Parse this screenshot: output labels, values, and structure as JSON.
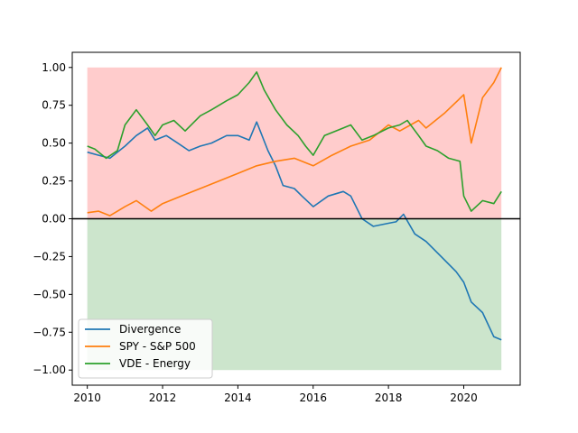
{
  "chart_data": {
    "type": "line",
    "title": "",
    "xlabel": "",
    "ylabel": "",
    "xlim": [
      2009.6,
      2021.5
    ],
    "ylim": [
      -1.1,
      1.1
    ],
    "x_ticks": [
      2010,
      2012,
      2014,
      2016,
      2018,
      2020
    ],
    "x_tick_labels": [
      "2010",
      "2012",
      "2014",
      "2016",
      "2018",
      "2020"
    ],
    "y_ticks": [
      1.0,
      0.75,
      0.5,
      0.25,
      0.0,
      -0.25,
      -0.5,
      -0.75,
      -1.0
    ],
    "y_tick_labels": [
      "1.00",
      "0.75",
      "0.50",
      "0.25",
      "0.00",
      "−0.25",
      "−0.50",
      "−0.75",
      "−1.00"
    ],
    "grid": false,
    "legend": {
      "position": "lower-left"
    },
    "bands": [
      {
        "y_from": 0,
        "y_to": 1,
        "x_from": 2010,
        "x_to": 2021,
        "color": "#ffcccc"
      },
      {
        "y_from": -1,
        "y_to": 0,
        "x_from": 2010,
        "x_to": 2021,
        "color": "#cce5cc"
      }
    ],
    "reference_line": {
      "y": 0,
      "color": "#000000"
    },
    "series": [
      {
        "name": "Divergence",
        "color": "#1f77b4",
        "x": [
          2010.0,
          2010.3,
          2010.6,
          2011.0,
          2011.3,
          2011.6,
          2011.8,
          2012.1,
          2012.4,
          2012.7,
          2013.0,
          2013.3,
          2013.7,
          2014.0,
          2014.3,
          2014.5,
          2014.8,
          2015.0,
          2015.2,
          2015.5,
          2015.7,
          2016.0,
          2016.4,
          2016.8,
          2017.0,
          2017.3,
          2017.6,
          2018.0,
          2018.2,
          2018.4,
          2018.7,
          2019.0,
          2019.4,
          2019.8,
          2020.0,
          2020.2,
          2020.5,
          2020.8,
          2021.0
        ],
        "y": [
          0.44,
          0.42,
          0.4,
          0.48,
          0.55,
          0.6,
          0.52,
          0.55,
          0.5,
          0.45,
          0.48,
          0.5,
          0.55,
          0.55,
          0.52,
          0.64,
          0.45,
          0.35,
          0.22,
          0.2,
          0.15,
          0.08,
          0.15,
          0.18,
          0.15,
          0.0,
          -0.05,
          -0.03,
          -0.02,
          0.03,
          -0.1,
          -0.15,
          -0.25,
          -0.35,
          -0.42,
          -0.55,
          -0.62,
          -0.78,
          -0.8
        ]
      },
      {
        "name": "SPY - S&P 500",
        "color": "#ff7f0e",
        "x": [
          2010.0,
          2010.3,
          2010.6,
          2011.0,
          2011.3,
          2011.7,
          2012.0,
          2012.5,
          2013.0,
          2013.5,
          2014.0,
          2014.5,
          2015.0,
          2015.5,
          2016.0,
          2016.5,
          2017.0,
          2017.5,
          2018.0,
          2018.3,
          2018.8,
          2019.0,
          2019.5,
          2020.0,
          2020.2,
          2020.3,
          2020.5,
          2020.8,
          2021.0
        ],
        "y": [
          0.04,
          0.05,
          0.02,
          0.08,
          0.12,
          0.05,
          0.1,
          0.15,
          0.2,
          0.25,
          0.3,
          0.35,
          0.38,
          0.4,
          0.35,
          0.42,
          0.48,
          0.52,
          0.62,
          0.58,
          0.65,
          0.6,
          0.7,
          0.82,
          0.5,
          0.6,
          0.8,
          0.9,
          1.0
        ]
      },
      {
        "name": "VDE - Energy",
        "color": "#2ca02c",
        "x": [
          2010.0,
          2010.2,
          2010.5,
          2010.8,
          2011.0,
          2011.3,
          2011.6,
          2011.8,
          2012.0,
          2012.3,
          2012.6,
          2013.0,
          2013.3,
          2013.7,
          2014.0,
          2014.3,
          2014.5,
          2014.7,
          2015.0,
          2015.3,
          2015.6,
          2015.8,
          2016.0,
          2016.3,
          2016.6,
          2017.0,
          2017.3,
          2017.6,
          2018.0,
          2018.3,
          2018.5,
          2018.8,
          2019.0,
          2019.3,
          2019.6,
          2019.9,
          2020.0,
          2020.2,
          2020.5,
          2020.8,
          2021.0
        ],
        "y": [
          0.48,
          0.46,
          0.4,
          0.45,
          0.62,
          0.72,
          0.62,
          0.55,
          0.62,
          0.65,
          0.58,
          0.68,
          0.72,
          0.78,
          0.82,
          0.9,
          0.97,
          0.85,
          0.72,
          0.62,
          0.55,
          0.48,
          0.42,
          0.55,
          0.58,
          0.62,
          0.52,
          0.55,
          0.6,
          0.62,
          0.65,
          0.55,
          0.48,
          0.45,
          0.4,
          0.38,
          0.15,
          0.05,
          0.12,
          0.1,
          0.18
        ]
      }
    ]
  }
}
